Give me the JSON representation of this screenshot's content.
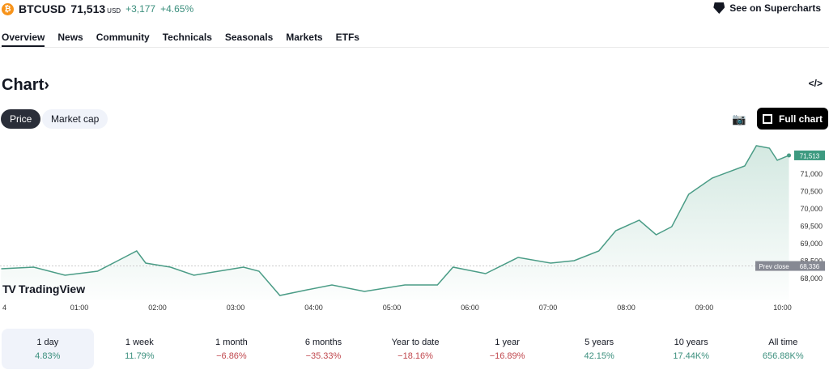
{
  "header": {
    "symbol": "BTCUSD",
    "price": "71,513",
    "currency": "USD",
    "change": "+3,177",
    "change_pct": "+4.65%",
    "coin_icon": "bitcoin-icon",
    "supercharts": "See on Supercharts"
  },
  "tabs": [
    "Overview",
    "News",
    "Community",
    "Technicals",
    "Seasonals",
    "Markets",
    "ETFs"
  ],
  "active_tab": "Overview",
  "section": {
    "title": "Chart",
    "chevron": "›",
    "embed": "</>"
  },
  "chart_toggle": {
    "options": [
      "Price",
      "Market cap"
    ],
    "selected": "Price"
  },
  "full_chart": "Full chart",
  "brand": "TradingView",
  "colors": {
    "line": "#4a9c86",
    "fill": "#cfe6de",
    "last_label": "#3d9a80",
    "prev_close": "#868993",
    "positive": "#3b8f7d",
    "negative": "#c0474d"
  },
  "chart_data": {
    "type": "area",
    "x_ticks": [
      "4",
      "01:00",
      "02:00",
      "03:00",
      "04:00",
      "05:00",
      "06:00",
      "07:00",
      "08:00",
      "09:00",
      "10:00"
    ],
    "y_ticks": [
      "71,000",
      "70,500",
      "70,000",
      "69,500",
      "69,000",
      "68,500",
      "68,000"
    ],
    "last_price_label": "71,513",
    "prev_close_label": "Prev close",
    "prev_close_value": "68,336",
    "prev_close": 68336,
    "x": [
      "00:00",
      "00:25",
      "00:49",
      "01:14",
      "01:32",
      "01:44",
      "01:51",
      "02:10",
      "02:28",
      "02:47",
      "03:06",
      "03:18",
      "03:34",
      "03:55",
      "04:14",
      "04:39",
      "05:10",
      "05:35",
      "05:47",
      "06:12",
      "06:37",
      "07:02",
      "07:20",
      "07:39",
      "07:52",
      "08:10",
      "08:23",
      "08:35",
      "08:48",
      "09:06",
      "09:31",
      "09:40",
      "09:50",
      "09:56",
      "10:05"
    ],
    "y": [
      68256,
      68302,
      68070,
      68186,
      68535,
      68768,
      68419,
      68302,
      68070,
      68186,
      68302,
      68186,
      67488,
      67651,
      67791,
      67605,
      67791,
      67791,
      68302,
      68116,
      68581,
      68419,
      68488,
      68768,
      69349,
      69651,
      69233,
      69465,
      70396,
      70861,
      71210,
      71791,
      71721,
      71372,
      71513
    ]
  },
  "performance": [
    {
      "label": "1 day",
      "value": "4.83%",
      "dir": "pos"
    },
    {
      "label": "1 week",
      "value": "11.79%",
      "dir": "pos"
    },
    {
      "label": "1 month",
      "value": "−6.86%",
      "dir": "neg"
    },
    {
      "label": "6 months",
      "value": "−35.33%",
      "dir": "neg"
    },
    {
      "label": "Year to date",
      "value": "−18.16%",
      "dir": "neg"
    },
    {
      "label": "1 year",
      "value": "−16.89%",
      "dir": "neg"
    },
    {
      "label": "5 years",
      "value": "42.15%",
      "dir": "pos"
    },
    {
      "label": "10 years",
      "value": "17.44K%",
      "dir": "pos"
    },
    {
      "label": "All time",
      "value": "656.88K%",
      "dir": "pos"
    }
  ]
}
